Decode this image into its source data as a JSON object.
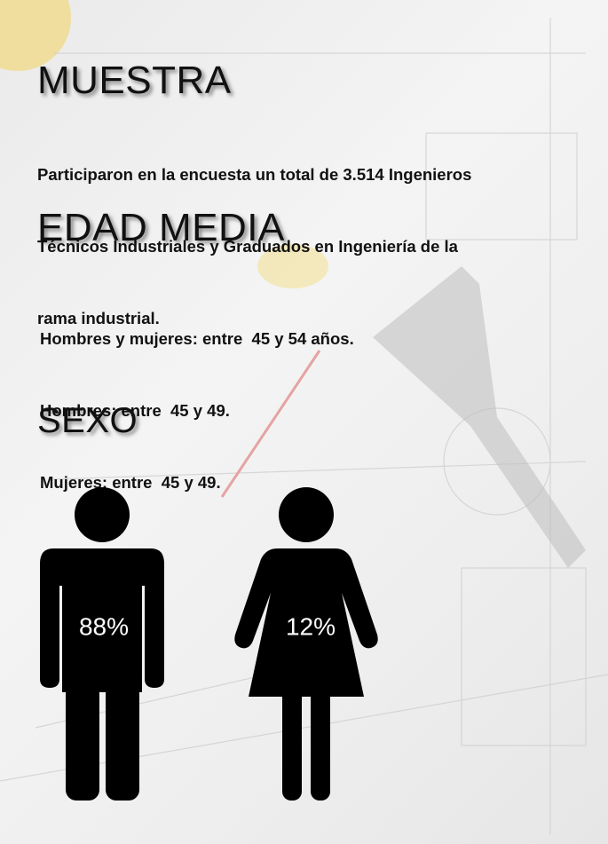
{
  "muestra": {
    "title": "MUESTRA",
    "lines": [
      "Participaron en la encuesta un total de 3.514 Ingenieros",
      "Técnicos Industriales y Graduados en Ingeniería de la",
      "rama industrial."
    ]
  },
  "edad_media": {
    "title": "EDAD MEDIA",
    "lines": [
      "Hombres y mujeres: entre  45 y 54 años.",
      "Hombres: entre  45 y 49.",
      "Mujeres: entre  45 y 49."
    ]
  },
  "sexo": {
    "title": "SEXO",
    "hombres": "88%",
    "mujeres": "12%"
  }
}
